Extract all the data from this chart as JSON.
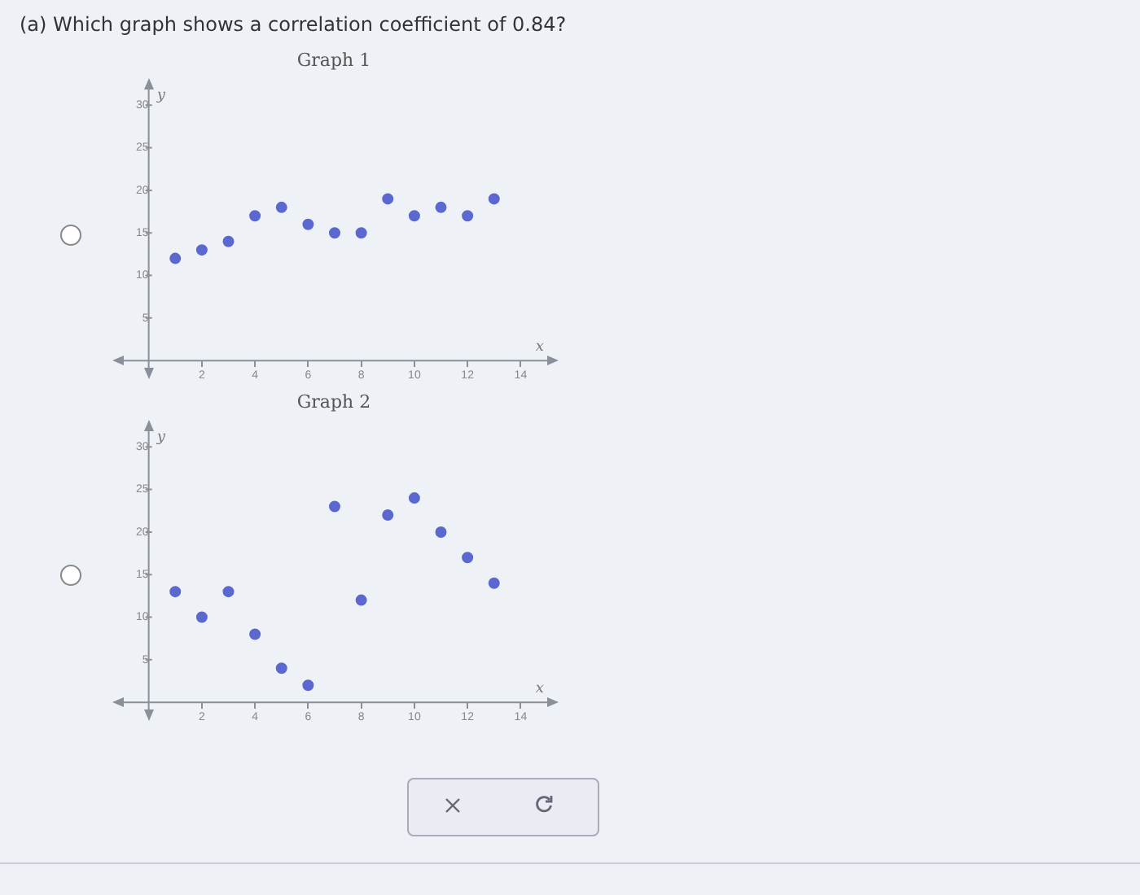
{
  "chart_data": [
    {
      "type": "scatter",
      "title": "Graph 1",
      "xlabel": "x",
      "ylabel": "y",
      "annotations": [
        "(a) Which graph shows a correlation coefficient of 0.84?"
      ],
      "x": [
        1,
        2,
        3,
        4,
        5,
        6,
        7,
        8,
        9,
        10,
        11,
        12,
        13
      ],
      "values": [
        12,
        13,
        14,
        17,
        18,
        16,
        15,
        15,
        19,
        17,
        18,
        17,
        19
      ],
      "color": "#5a68cf",
      "marker": "circle",
      "xlim": [
        -1,
        15
      ],
      "ylim": [
        -1,
        32
      ],
      "xticks": [
        2,
        4,
        6,
        8,
        10,
        12,
        14
      ],
      "yticks": [
        5,
        10,
        15,
        20,
        25,
        30
      ],
      "grid": false,
      "legend": false
    },
    {
      "type": "scatter",
      "title": "Graph 2",
      "xlabel": "x",
      "ylabel": "y",
      "x": [
        1,
        2,
        3,
        4,
        5,
        6,
        7,
        8,
        9,
        10,
        11,
        12,
        13
      ],
      "values": [
        13,
        10,
        13,
        8,
        4,
        2,
        23,
        12,
        22,
        24,
        20,
        17,
        14
      ],
      "color": "#5a68cf",
      "marker": "circle",
      "xlim": [
        -1,
        15
      ],
      "ylim": [
        -1,
        32
      ],
      "xticks": [
        2,
        4,
        6,
        8,
        10,
        12,
        14
      ],
      "yticks": [
        5,
        10,
        15,
        20,
        25,
        30
      ],
      "grid": false,
      "legend": false
    }
  ]
}
